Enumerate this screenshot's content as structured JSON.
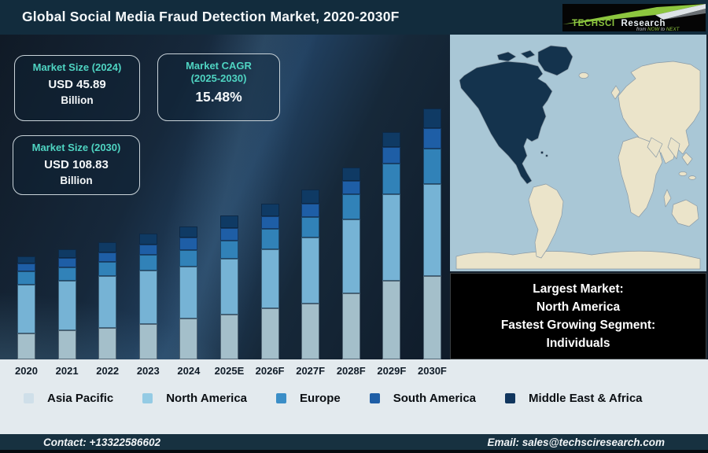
{
  "header": {
    "title": "Global Social Media Fraud Detection Market, 2020-2030F"
  },
  "logo": {
    "brand_primary": "TechSci",
    "brand_secondary": "Research",
    "tagline_parts": [
      "from ",
      "NOW",
      " to ",
      "NEXT"
    ],
    "accent_green": "#8dc63f"
  },
  "stats": [
    {
      "title_lines": [
        "Market Size (2024)"
      ],
      "value": "USD 45.89",
      "unit": "Billion"
    },
    {
      "title_lines": [
        "Market CAGR",
        "(2025-2030)"
      ],
      "value": "15.48%",
      "unit": ""
    },
    {
      "title_lines": [
        "Market Size (2030)"
      ],
      "value": "USD 108.83",
      "unit": "Billion"
    }
  ],
  "chart_data": {
    "type": "bar",
    "stacked": true,
    "title": "Global Social Media Fraud Detection Market, 2020-2030F",
    "unit_note": "No numeric axis shown; series values are relative bar-segment heights (px) measured from the figure",
    "categories": [
      "2020",
      "2021",
      "2022",
      "2023",
      "2024",
      "2025E",
      "2026F",
      "2027F",
      "2028F",
      "2029F",
      "2030F"
    ],
    "series": [
      {
        "key": "asia-pacific",
        "name": "Asia Pacific",
        "color": "#a4bfca",
        "values": [
          33,
          37,
          40,
          45,
          52,
          57,
          65,
          71,
          84,
          100,
          106
        ]
      },
      {
        "key": "north-america",
        "name": "North America",
        "color": "#76b3d5",
        "values": [
          62,
          63,
          66,
          68,
          66,
          71,
          75,
          84,
          94,
          110,
          117
        ]
      },
      {
        "key": "europe",
        "name": "Europe",
        "color": "#3182b8",
        "values": [
          17,
          17,
          18,
          20,
          21,
          23,
          26,
          26,
          32,
          39,
          45
        ]
      },
      {
        "key": "south-america",
        "name": "South America",
        "color": "#1e5ea6",
        "values": [
          10,
          12,
          12,
          13,
          16,
          16,
          16,
          17,
          17,
          21,
          26
        ]
      },
      {
        "key": "middle-east-africa",
        "name": "Middle East & Africa",
        "color": "#0f3a64",
        "values": [
          9,
          11,
          13,
          14,
          14,
          16,
          16,
          18,
          17,
          19,
          25
        ]
      }
    ],
    "annotations": {
      "market_size_2024": "USD 45.89 Billion",
      "market_size_2030": "USD 108.83 Billion",
      "cagr_2025_2030": "15.48%"
    },
    "legend_position": "bottom",
    "axis": {
      "x_labels_visible": true,
      "y_axis_visible": false,
      "gridlines": false
    }
  },
  "legend": {
    "items": [
      {
        "label": "Asia Pacific",
        "color": "#cfdfe9"
      },
      {
        "label": "North America",
        "color": "#94cbe4"
      },
      {
        "label": "Europe",
        "color": "#3b8ec7"
      },
      {
        "label": "South America",
        "color": "#1e5ea6"
      },
      {
        "label": "Middle East & Africa",
        "color": "#11365e"
      }
    ]
  },
  "map": {
    "ocean_color": "#a9c7d6",
    "land_color": "#ebe4ca",
    "highlight_color": "#14334d",
    "highlight_region": "North America"
  },
  "callout": {
    "lines": [
      "Largest Market:",
      "North America",
      "Fastest Growing Segment:",
      "Individuals"
    ]
  },
  "footer": {
    "contact": "Contact: +13322586602",
    "email": "Email: sales@techsciresearch.com"
  }
}
